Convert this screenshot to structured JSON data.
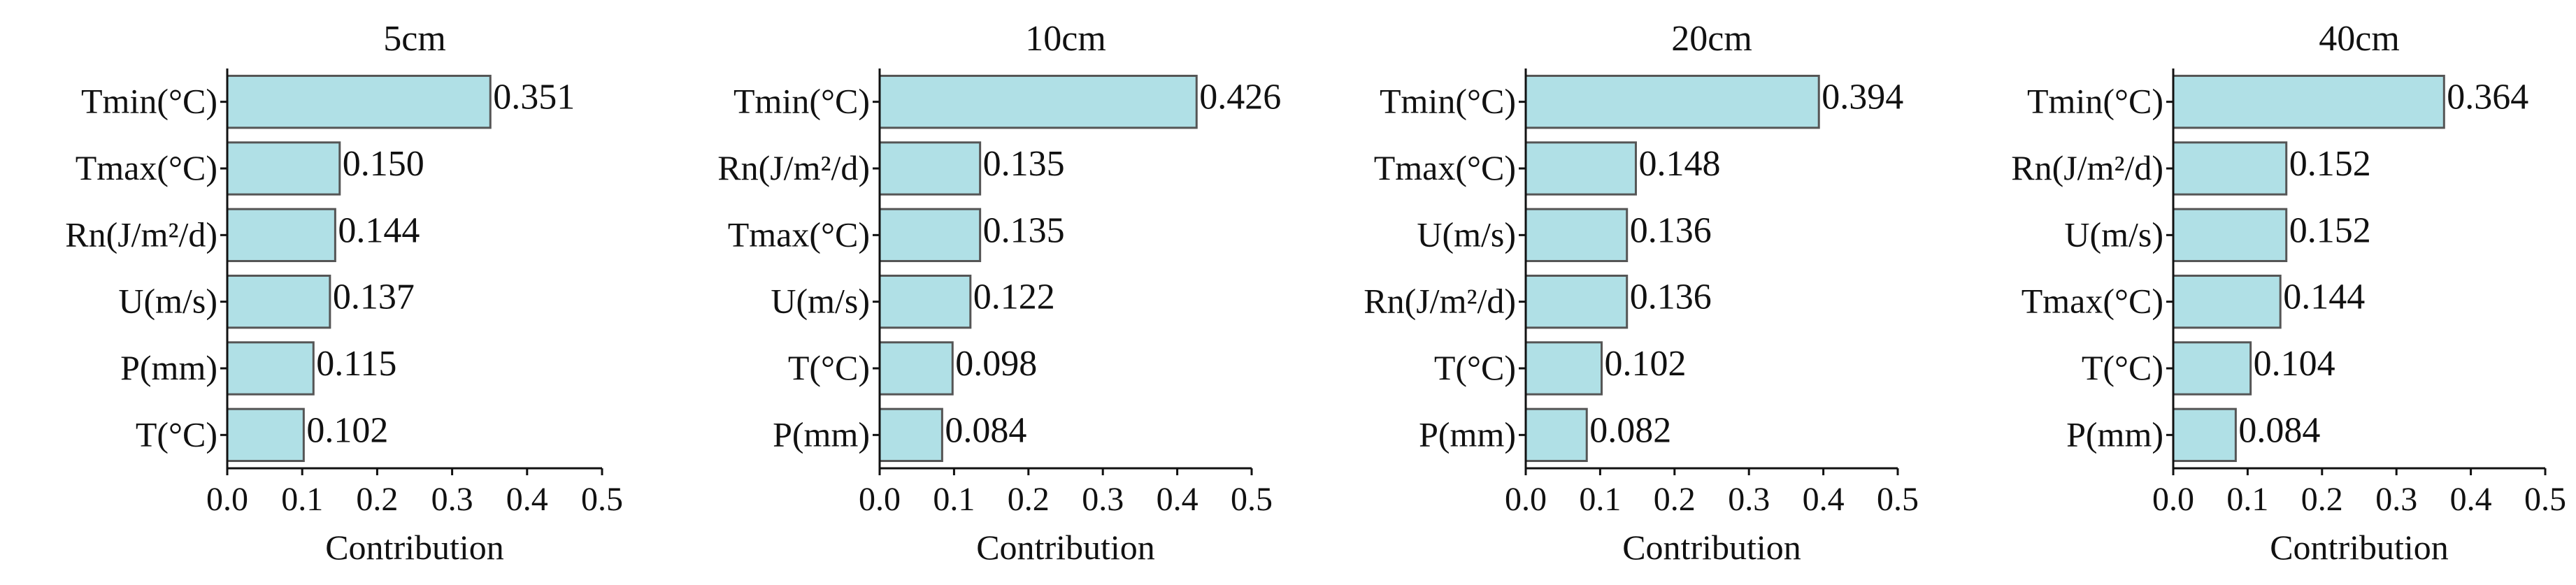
{
  "chart_data": [
    {
      "type": "bar",
      "orientation": "horizontal",
      "title": "5cm",
      "xlabel": "Contribution",
      "ylabel": "",
      "xlim": [
        0,
        0.5
      ],
      "xticks": [
        "0.0",
        "0.1",
        "0.2",
        "0.3",
        "0.4",
        "0.5"
      ],
      "categories": [
        "Tmin(°C)",
        "Tmax(°C)",
        "Rn(J/m²/d)",
        "U(m/s)",
        "P(mm)",
        "T(°C)"
      ],
      "values": [
        0.351,
        0.15,
        0.144,
        0.137,
        0.115,
        0.102
      ],
      "value_labels": [
        "0.351",
        "0.150",
        "0.144",
        "0.137",
        "0.115",
        "0.102"
      ]
    },
    {
      "type": "bar",
      "orientation": "horizontal",
      "title": "10cm",
      "xlabel": "Contribution",
      "ylabel": "",
      "xlim": [
        0,
        0.5
      ],
      "xticks": [
        "0.0",
        "0.1",
        "0.2",
        "0.3",
        "0.4",
        "0.5"
      ],
      "categories": [
        "Tmin(°C)",
        "Rn(J/m²/d)",
        "Tmax(°C)",
        "U(m/s)",
        "T(°C)",
        "P(mm)"
      ],
      "values": [
        0.426,
        0.135,
        0.135,
        0.122,
        0.098,
        0.084
      ],
      "value_labels": [
        "0.426",
        "0.135",
        "0.135",
        "0.122",
        "0.098",
        "0.084"
      ]
    },
    {
      "type": "bar",
      "orientation": "horizontal",
      "title": "20cm",
      "xlabel": "Contribution",
      "ylabel": "",
      "xlim": [
        0,
        0.5
      ],
      "xticks": [
        "0.0",
        "0.1",
        "0.2",
        "0.3",
        "0.4",
        "0.5"
      ],
      "categories": [
        "Tmin(°C)",
        "Tmax(°C)",
        "U(m/s)",
        "Rn(J/m²/d)",
        "T(°C)",
        "P(mm)"
      ],
      "values": [
        0.394,
        0.148,
        0.136,
        0.136,
        0.102,
        0.082
      ],
      "value_labels": [
        "0.394",
        "0.148",
        "0.136",
        "0.136",
        "0.102",
        "0.082"
      ]
    },
    {
      "type": "bar",
      "orientation": "horizontal",
      "title": "40cm",
      "xlabel": "Contribution",
      "ylabel": "",
      "xlim": [
        0,
        0.5
      ],
      "xticks": [
        "0.0",
        "0.1",
        "0.2",
        "0.3",
        "0.4",
        "0.5"
      ],
      "categories": [
        "Tmin(°C)",
        "Rn(J/m²/d)",
        "U(m/s)",
        "Tmax(°C)",
        "T(°C)",
        "P(mm)"
      ],
      "values": [
        0.364,
        0.152,
        0.152,
        0.144,
        0.104,
        0.084
      ],
      "value_labels": [
        "0.364",
        "0.152",
        "0.152",
        "0.144",
        "0.104",
        "0.084"
      ]
    }
  ],
  "style": {
    "bar_fill": "#b0e0e6",
    "bar_edge": "#555555",
    "axis_color": "#111111"
  }
}
